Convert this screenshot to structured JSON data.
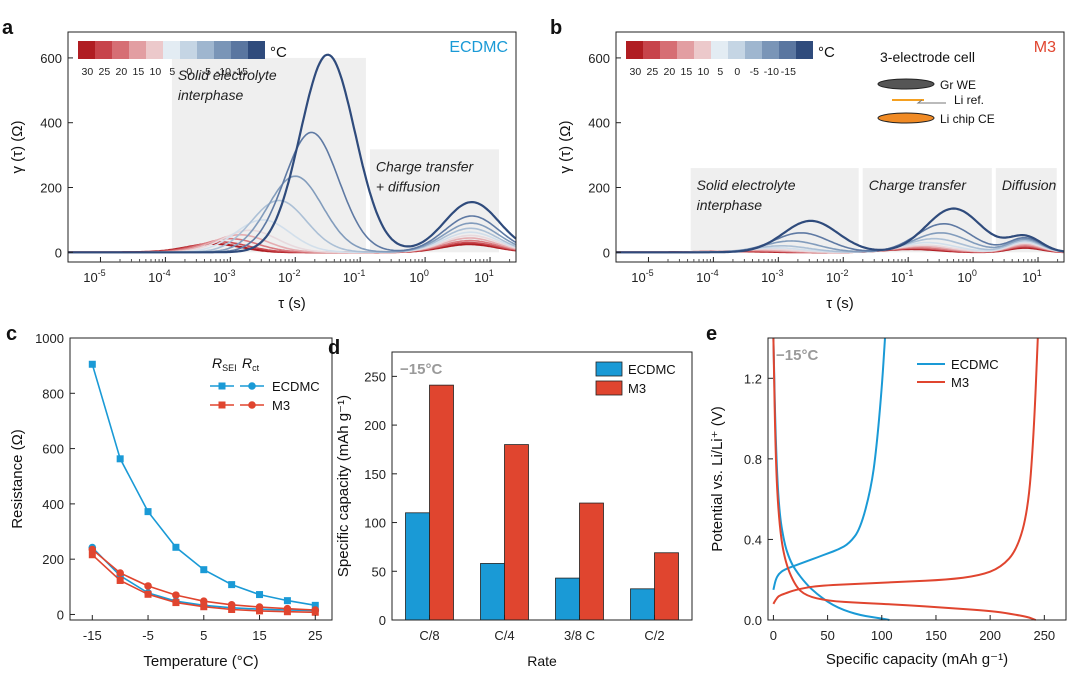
{
  "panels": [
    {
      "letter": "a",
      "label_id": "panel-a-label"
    },
    {
      "letter": "b",
      "label_id": "panel-b-label"
    },
    {
      "letter": "c",
      "label_id": "panel-c-label"
    },
    {
      "letter": "d",
      "label_id": "panel-d-label"
    },
    {
      "letter": "e",
      "label_id": "panel-e-label"
    }
  ],
  "colors": {
    "ecdmc": "#1a9ad6",
    "m3": "#e0452f",
    "shade": "#efefef",
    "temp_scale": [
      "#b01d22",
      "#c7444b",
      "#d66e74",
      "#e29ea2",
      "#ecc9cb",
      "#e3ecf3",
      "#c5d5e4",
      "#9fb6cf",
      "#7a95b7",
      "#5a76a0",
      "#2f4b7c"
    ]
  },
  "temperature_legend": {
    "unit": "°C",
    "ticks": [
      "30",
      "25",
      "20",
      "15",
      "10",
      "5",
      "0",
      "-5",
      "-10",
      "-15"
    ]
  },
  "chart_data": [
    {
      "id": "a",
      "type": "line",
      "title": "ECDMC",
      "xlabel": "τ (s)",
      "ylabel": "γ (τ) (Ω)",
      "xscale": "log",
      "xlim": [
        -5.5,
        1.4
      ],
      "ylim": [
        -30,
        680
      ],
      "xticks": [
        -5,
        -4,
        -3,
        -2,
        -1,
        0,
        1
      ],
      "yticks": [
        0,
        200,
        400,
        600
      ],
      "regions": [
        {
          "label": [
            "Solid electrolyte",
            "interphase"
          ],
          "x0": -3.9,
          "x1": -0.85
        },
        {
          "label": [
            "Charge transfer",
            "+ diffusion"
          ],
          "x0": -0.85,
          "x1": 1.2
        }
      ],
      "temperatures": [
        30,
        25,
        20,
        15,
        10,
        5,
        0,
        -5,
        -10,
        -15
      ],
      "sei_peaks": {
        "tau_log": [
          -3.25,
          -3.15,
          -3.0,
          -2.85,
          -2.7,
          -2.5,
          -2.25,
          -2.0,
          -1.75,
          -1.5
        ],
        "height": [
          26,
          32,
          42,
          54,
          68,
          100,
          160,
          235,
          370,
          610
        ]
      },
      "ct_peaks": {
        "tau_log": [
          0.68,
          0.68,
          0.69,
          0.69,
          0.7,
          0.7,
          0.7,
          0.71,
          0.72,
          0.72
        ],
        "height": [
          25,
          30,
          36,
          44,
          52,
          62,
          74,
          90,
          112,
          155
        ]
      }
    },
    {
      "id": "b",
      "type": "line",
      "title": "M3",
      "xlabel": "τ (s)",
      "ylabel": "γ (τ) (Ω)",
      "xscale": "log",
      "xlim": [
        -5.5,
        1.4
      ],
      "ylim": [
        -30,
        680
      ],
      "xticks": [
        -5,
        -4,
        -3,
        -2,
        -1,
        0,
        1
      ],
      "yticks": [
        0,
        200,
        400,
        600
      ],
      "regions": [
        {
          "label": [
            "Solid electrolyte",
            "interphase"
          ],
          "x0": -4.35,
          "x1": -1.7
        },
        {
          "label": [
            "Charge transfer"
          ],
          "x0": -1.7,
          "x1": 0.35
        },
        {
          "label": [
            "Diffusion"
          ],
          "x0": 0.35,
          "x1": 1.35
        }
      ],
      "temperatures": [
        30,
        25,
        20,
        15,
        10,
        5,
        0,
        -5,
        -10,
        -15
      ],
      "sei_peaks": {
        "tau_log": [
          -3.6,
          -3.5,
          -3.4,
          -3.3,
          -3.2,
          -3.05,
          -2.95,
          -2.8,
          -2.65,
          -2.5
        ],
        "height": [
          3,
          4,
          5,
          7,
          10,
          14,
          20,
          35,
          60,
          97
        ]
      },
      "ct_peaks": {
        "tau_log": [
          -0.95,
          -0.9,
          -0.85,
          -0.8,
          -0.75,
          -0.7,
          -0.6,
          -0.5,
          -0.45,
          -0.3
        ],
        "height": [
          10,
          12,
          14,
          18,
          22,
          30,
          42,
          60,
          88,
          135
        ]
      },
      "diff_peaks": {
        "tau_log": [
          0.8,
          0.8,
          0.8,
          0.8,
          0.8,
          0.8,
          0.8,
          0.8,
          0.8,
          0.8
        ],
        "height": [
          14,
          17,
          20,
          24,
          28,
          32,
          36,
          40,
          44,
          48
        ]
      },
      "cell_legend": {
        "title": "3-electrode cell",
        "items": [
          "Gr WE",
          "Li ref.",
          "Li chip CE"
        ]
      }
    },
    {
      "id": "c",
      "type": "line",
      "xlabel": "Temperature (°C)",
      "ylabel": "Resistance (Ω)",
      "xlim": [
        -19,
        28
      ],
      "ylim": [
        -20,
        1000
      ],
      "xticks": [
        -15,
        -5,
        5,
        15,
        25
      ],
      "yticks": [
        0,
        200,
        400,
        600,
        800,
        1000
      ],
      "legend_headers": {
        "sei": "SEI",
        "ct": "ct"
      },
      "x": [
        -15,
        -10,
        -5,
        0,
        5,
        10,
        15,
        20,
        25
      ],
      "series": [
        {
          "name": "ECDMC",
          "kind": "RSEI",
          "values": [
            905,
            563,
            372,
            243,
            162,
            108,
            72,
            50,
            33
          ]
        },
        {
          "name": "ECDMC",
          "kind": "Rct",
          "values": [
            242,
            140,
            78,
            48,
            33,
            24,
            19,
            16,
            14
          ]
        },
        {
          "name": "M3",
          "kind": "RSEI",
          "values": [
            216,
            123,
            73,
            43,
            28,
            18,
            13,
            10,
            8
          ]
        },
        {
          "name": "M3",
          "kind": "Rct",
          "values": [
            235,
            150,
            103,
            70,
            48,
            35,
            27,
            21,
            16
          ]
        }
      ]
    },
    {
      "id": "d",
      "type": "bar",
      "annotation": "−15°C",
      "xlabel": "Rate",
      "ylabel": "Specific capacity (mAh g⁻¹)",
      "ylim": [
        0,
        275
      ],
      "yticks": [
        0,
        50,
        100,
        150,
        200,
        250
      ],
      "categories": [
        "C/8",
        "C/4",
        "3/8 C",
        "C/2"
      ],
      "series": [
        {
          "name": "ECDMC",
          "values": [
            110,
            58,
            43,
            32
          ]
        },
        {
          "name": "M3",
          "values": [
            241,
            180,
            120,
            69
          ]
        }
      ]
    },
    {
      "id": "e",
      "type": "line",
      "annotation": "−15°C",
      "xlabel": "Specific capacity (mAh g⁻¹)",
      "ylabel": "Potential vs. Li/Li⁺ (V)",
      "xlim": [
        -5,
        270
      ],
      "ylim": [
        0,
        1.4
      ],
      "xticks": [
        0,
        50,
        100,
        150,
        200,
        250
      ],
      "yticks": [
        0.0,
        0.4,
        0.8,
        1.2
      ],
      "series": [
        {
          "name": "ECDMC",
          "discharge": {
            "x": [
              0,
              2,
              5,
              10,
              15,
              20,
              30,
              40,
              50,
              60,
              70,
              80,
              90,
              100,
              107
            ],
            "y": [
              1.4,
              0.9,
              0.55,
              0.38,
              0.3,
              0.25,
              0.18,
              0.13,
              0.09,
              0.06,
              0.04,
              0.025,
              0.015,
              0.008,
              0.0
            ]
          },
          "charge": {
            "x": [
              0,
              2,
              5,
              10,
              20,
              30,
              40,
              50,
              60,
              70,
              80,
              90,
              95,
              100,
              103
            ],
            "y": [
              0.15,
              0.2,
              0.23,
              0.25,
              0.27,
              0.29,
              0.31,
              0.33,
              0.35,
              0.38,
              0.45,
              0.65,
              0.85,
              1.15,
              1.4
            ]
          }
        },
        {
          "name": "M3",
          "discharge": {
            "x": [
              0,
              2,
              5,
              10,
              20,
              30,
              50,
              80,
              120,
              160,
              200,
              220,
              235,
              242
            ],
            "y": [
              1.4,
              0.8,
              0.5,
              0.3,
              0.17,
              0.12,
              0.095,
              0.085,
              0.075,
              0.06,
              0.045,
              0.03,
              0.015,
              0.0
            ]
          },
          "charge": {
            "x": [
              0,
              2,
              5,
              10,
              20,
              40,
              80,
              120,
              160,
              190,
              210,
              225,
              235,
              240,
              244
            ],
            "y": [
              0.08,
              0.1,
              0.12,
              0.13,
              0.15,
              0.17,
              0.18,
              0.19,
              0.2,
              0.22,
              0.26,
              0.35,
              0.55,
              0.9,
              1.4
            ]
          }
        }
      ]
    }
  ]
}
